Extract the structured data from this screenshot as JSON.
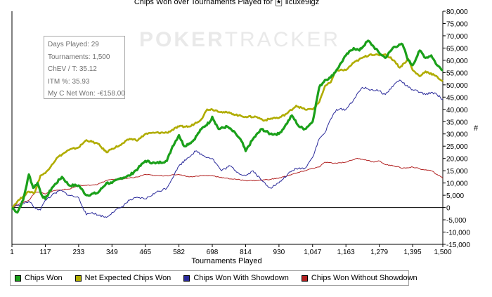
{
  "chart_data": {
    "type": "line",
    "title": "Chips Won over Tournaments Played for 🃏ˈllcuxe9lgz",
    "xlabel": "Tournaments Played",
    "ylabel": "#",
    "xlim": [
      1,
      1500
    ],
    "ylim": [
      -15000,
      80000
    ],
    "x_ticks": [
      "1",
      "117",
      "233",
      "349",
      "465",
      "582",
      "698",
      "814",
      "930",
      "1,047",
      "1,163",
      "1,279",
      "1,395",
      "1,500"
    ],
    "y_ticks": [
      "80,000",
      "75,000",
      "70,000",
      "65,000",
      "60,000",
      "55,000",
      "50,000",
      "45,000",
      "40,000",
      "35,000",
      "30,000",
      "25,000",
      "20,000",
      "15,000",
      "10,000",
      "5,000",
      "0",
      "-5,000",
      "-10,000",
      "-15,000"
    ],
    "grid": false,
    "legend_position": "bottom",
    "watermark": {
      "first": "POKER",
      "second": "TRACKER"
    },
    "stats_box": [
      "Days Played: 29",
      "Tournaments: 1,500",
      "ChEV / T: 35.12",
      "ITM %: 35.93",
      "My C Net Won: -€158.00"
    ],
    "series": [
      {
        "name": "Chips Won",
        "color": "#1aa01a",
        "x": [
          1,
          20,
          40,
          60,
          75,
          90,
          105,
          117,
          140,
          175,
          200,
          233,
          260,
          300,
          330,
          349,
          380,
          410,
          440,
          465,
          500,
          540,
          560,
          582,
          600,
          630,
          660,
          690,
          698,
          720,
          750,
          780,
          800,
          814,
          840,
          870,
          900,
          930,
          950,
          975,
          1000,
          1020,
          1047,
          1070,
          1090,
          1110,
          1130,
          1163,
          1190,
          1210,
          1240,
          1260,
          1279,
          1300,
          1330,
          1360,
          1380,
          1395,
          1420,
          1440,
          1460,
          1480,
          1500
        ],
        "values": [
          0,
          -2000,
          3000,
          13500,
          8000,
          10000,
          5000,
          3500,
          8000,
          12500,
          9000,
          9000,
          5000,
          6000,
          10000,
          10000,
          12000,
          13000,
          16000,
          19000,
          18000,
          19000,
          25000,
          29500,
          25000,
          27000,
          32000,
          35000,
          37000,
          32000,
          33000,
          30000,
          27000,
          23000,
          28000,
          32000,
          30000,
          30000,
          33000,
          37500,
          33000,
          32000,
          35000,
          49000,
          52000,
          53000,
          56000,
          62000,
          65000,
          64000,
          68000,
          65500,
          63000,
          61000,
          65500,
          66500,
          60000,
          58000,
          64000,
          61000,
          62000,
          58000,
          56000
        ]
      },
      {
        "name": "Net Expected Chips Won",
        "color": "#b0ac00",
        "x": [
          1,
          20,
          40,
          60,
          80,
          100,
          117,
          140,
          160,
          200,
          233,
          260,
          300,
          330,
          349,
          380,
          410,
          440,
          465,
          500,
          540,
          582,
          620,
          660,
          680,
          698,
          730,
          760,
          790,
          814,
          850,
          880,
          910,
          930,
          960,
          990,
          1020,
          1047,
          1070,
          1090,
          1110,
          1130,
          1163,
          1190,
          1220,
          1250,
          1279,
          1300,
          1330,
          1350,
          1380,
          1395,
          1420,
          1440,
          1470,
          1500
        ],
        "values": [
          0,
          2500,
          4500,
          6500,
          6000,
          13000,
          14000,
          17500,
          20500,
          23500,
          24500,
          27500,
          26000,
          22500,
          24000,
          25500,
          28000,
          27500,
          30000,
          30500,
          30500,
          33000,
          33000,
          36000,
          40000,
          40000,
          39000,
          38500,
          37500,
          37000,
          37000,
          35500,
          36500,
          36500,
          38500,
          41500,
          40000,
          40000,
          43000,
          49500,
          51000,
          56000,
          56000,
          59000,
          61000,
          62500,
          62000,
          62500,
          60000,
          57000,
          60500,
          56000,
          53500,
          55500,
          54000,
          51500
        ]
      },
      {
        "name": "Chips Won With Showdown",
        "color": "#2a2a9a",
        "x": [
          1,
          20,
          40,
          60,
          80,
          100,
          117,
          140,
          170,
          200,
          233,
          260,
          280,
          300,
          330,
          349,
          380,
          410,
          440,
          465,
          500,
          540,
          582,
          610,
          640,
          670,
          698,
          730,
          760,
          790,
          814,
          840,
          870,
          900,
          930,
          960,
          990,
          1020,
          1047,
          1070,
          1090,
          1110,
          1130,
          1163,
          1190,
          1220,
          1250,
          1279,
          1300,
          1330,
          1350,
          1380,
          1395,
          1420,
          1440,
          1460,
          1480,
          1500
        ],
        "values": [
          0,
          1000,
          1500,
          2500,
          0,
          -1000,
          3000,
          5000,
          7000,
          5000,
          4000,
          -3000,
          -2000,
          -3000,
          -4000,
          -2000,
          0,
          3000,
          4000,
          3500,
          6000,
          8000,
          17000,
          20000,
          23000,
          21000,
          20000,
          15000,
          17000,
          14000,
          13000,
          15000,
          11000,
          8000,
          10000,
          13500,
          16000,
          16000,
          20500,
          28000,
          30500,
          36000,
          40000,
          40000,
          44000,
          49000,
          48000,
          47500,
          46000,
          50000,
          52000,
          49000,
          48000,
          47000,
          46000,
          47000,
          46000,
          44000
        ]
      },
      {
        "name": "Chips Won Without Showdown",
        "color": "#b22222",
        "x": [
          1,
          20,
          40,
          60,
          80,
          100,
          117,
          150,
          200,
          233,
          260,
          300,
          330,
          349,
          380,
          410,
          440,
          465,
          500,
          540,
          582,
          620,
          660,
          698,
          740,
          780,
          814,
          850,
          900,
          930,
          960,
          990,
          1020,
          1047,
          1070,
          1090,
          1120,
          1163,
          1200,
          1230,
          1260,
          1279,
          1300,
          1330,
          1360,
          1395,
          1430,
          1460,
          1480,
          1500
        ],
        "values": [
          0,
          1000,
          2000,
          3000,
          6000,
          6500,
          5500,
          7000,
          7500,
          9000,
          9000,
          9500,
          11000,
          11500,
          11500,
          12000,
          12500,
          13500,
          13000,
          13000,
          13500,
          12500,
          13000,
          13000,
          12000,
          11500,
          11000,
          11000,
          11500,
          12000,
          13000,
          14000,
          15000,
          16000,
          16500,
          18500,
          18000,
          18500,
          20000,
          19500,
          18500,
          19000,
          17500,
          17000,
          16000,
          16500,
          15500,
          15000,
          13500,
          12000
        ]
      }
    ]
  }
}
